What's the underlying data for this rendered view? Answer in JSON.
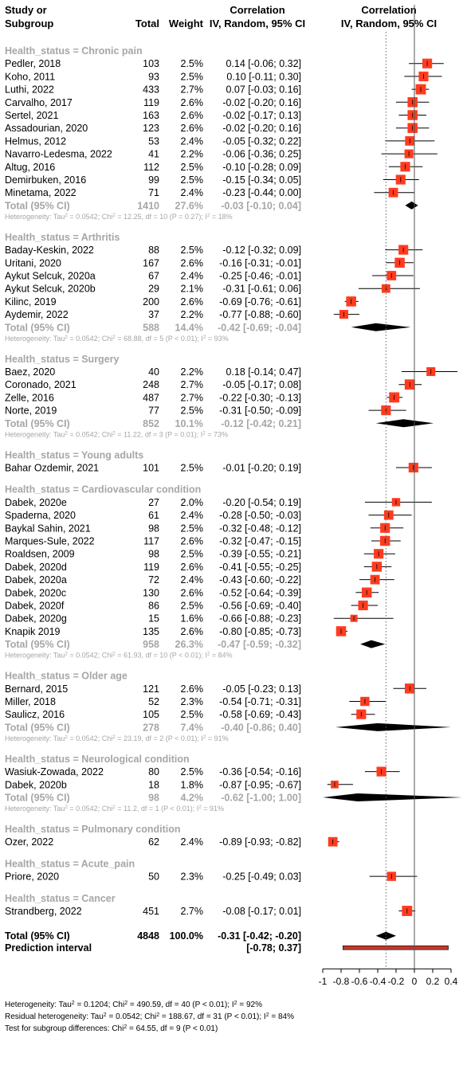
{
  "chart_data": {
    "type": "forest",
    "columns": {
      "study_line1": "Study or",
      "study_line2": "Subgroup",
      "total": "Total",
      "weight": "Weight",
      "effect_line1": "Correlation",
      "effect_line2": "IV, Random, 95% CI",
      "plot_line1": "Correlation",
      "plot_line2": "IV, Random, 95% CI"
    },
    "x_axis": {
      "range": [
        -1,
        0.4
      ],
      "ticks": [
        "-1",
        "-0.8",
        "-0.6",
        "-0.4",
        "-0.2",
        "0",
        "0.2",
        "0.4"
      ],
      "tick_values": [
        -1,
        -0.8,
        -0.6,
        -0.4,
        -0.2,
        0,
        0.2,
        0.4
      ],
      "reference_line": 0,
      "overall_dotted_line": -0.31
    },
    "colors": {
      "study_box": "#ff3b1f",
      "subgroup_text": "#a6a6a6",
      "diamond": "#000000",
      "prediction_bar": "#c0392b"
    },
    "subgroups": [
      {
        "label": "Health_status = Chronic pain",
        "studies": [
          {
            "study": "Pedler, 2018",
            "total": "103",
            "weight": "2.5%",
            "ci_text": "0.14 [-0.06; 0.32]",
            "est": 0.14,
            "lo": -0.06,
            "hi": 0.32
          },
          {
            "study": "Koho, 2011",
            "total": "93",
            "weight": "2.5%",
            "ci_text": "0.10 [-0.11; 0.30]",
            "est": 0.1,
            "lo": -0.11,
            "hi": 0.3
          },
          {
            "study": "Luthi, 2022",
            "total": "433",
            "weight": "2.7%",
            "ci_text": "0.07 [-0.03; 0.16]",
            "est": 0.07,
            "lo": -0.03,
            "hi": 0.16
          },
          {
            "study": "Carvalho, 2017",
            "total": "119",
            "weight": "2.6%",
            "ci_text": "-0.02 [-0.20; 0.16]",
            "est": -0.02,
            "lo": -0.2,
            "hi": 0.16
          },
          {
            "study": "Sertel, 2021",
            "total": "163",
            "weight": "2.6%",
            "ci_text": "-0.02 [-0.17; 0.13]",
            "est": -0.02,
            "lo": -0.17,
            "hi": 0.13
          },
          {
            "study": "Assadourian, 2020",
            "total": "123",
            "weight": "2.6%",
            "ci_text": "-0.02 [-0.20; 0.16]",
            "est": -0.02,
            "lo": -0.2,
            "hi": 0.16
          },
          {
            "study": "Helmus, 2012",
            "total": "53",
            "weight": "2.4%",
            "ci_text": "-0.05 [-0.32; 0.22]",
            "est": -0.05,
            "lo": -0.32,
            "hi": 0.22
          },
          {
            "study": "Navarro-Ledesma, 2022",
            "total": "41",
            "weight": "2.2%",
            "ci_text": "-0.06 [-0.36; 0.25]",
            "est": -0.06,
            "lo": -0.36,
            "hi": 0.25
          },
          {
            "study": "Altug, 2016",
            "total": "112",
            "weight": "2.5%",
            "ci_text": "-0.10 [-0.28; 0.09]",
            "est": -0.1,
            "lo": -0.28,
            "hi": 0.09
          },
          {
            "study": "Demirbuken, 2016",
            "total": "99",
            "weight": "2.5%",
            "ci_text": "-0.15 [-0.34; 0.05]",
            "est": -0.15,
            "lo": -0.34,
            "hi": 0.05
          },
          {
            "study": "Minetama, 2022",
            "total": "71",
            "weight": "2.4%",
            "ci_text": "-0.23 [-0.44; 0.00]",
            "est": -0.23,
            "lo": -0.44,
            "hi": 0.0
          }
        ],
        "total": {
          "label": "Total (95% CI)",
          "n": "1410",
          "weight": "27.6%",
          "ci_text": "-0.03 [-0.10; 0.04]",
          "est": -0.03,
          "lo": -0.1,
          "hi": 0.04
        },
        "heterogeneity": {
          "prefix": "Heterogeneity: Tau",
          "mid": " = 0.0542; Chi",
          "rest": " = 12.25, df = 10 (P = 0.27); I",
          "end": " = 18%"
        }
      },
      {
        "label": "Health_status = Arthritis",
        "studies": [
          {
            "study": "Baday-Keskin, 2022",
            "total": "88",
            "weight": "2.5%",
            "ci_text": "-0.12 [-0.32; 0.09]",
            "est": -0.12,
            "lo": -0.32,
            "hi": 0.09
          },
          {
            "study": "Uritani, 2020",
            "total": "167",
            "weight": "2.6%",
            "ci_text": "-0.16 [-0.31; -0.01]",
            "est": -0.16,
            "lo": -0.31,
            "hi": -0.01
          },
          {
            "study": "Aykut Selcuk, 2020a",
            "total": "67",
            "weight": "2.4%",
            "ci_text": "-0.25 [-0.46; -0.01]",
            "est": -0.25,
            "lo": -0.46,
            "hi": -0.01
          },
          {
            "study": "Aykut Selcuk, 2020b",
            "total": "29",
            "weight": "2.1%",
            "ci_text": "-0.31 [-0.61; 0.06]",
            "est": -0.31,
            "lo": -0.61,
            "hi": 0.06
          },
          {
            "study": "Kilinc, 2019",
            "total": "200",
            "weight": "2.6%",
            "ci_text": "-0.69 [-0.76; -0.61]",
            "est": -0.69,
            "lo": -0.76,
            "hi": -0.61
          },
          {
            "study": "Aydemir, 2022",
            "total": "37",
            "weight": "2.2%",
            "ci_text": "-0.77 [-0.88; -0.60]",
            "est": -0.77,
            "lo": -0.88,
            "hi": -0.6
          }
        ],
        "total": {
          "label": "Total (95% CI)",
          "n": "588",
          "weight": "14.4%",
          "ci_text": "-0.42 [-0.69; -0.04]",
          "est": -0.42,
          "lo": -0.69,
          "hi": -0.04
        },
        "heterogeneity": {
          "prefix": "Heterogeneity: Tau",
          "mid": " = 0.0542; Chi",
          "rest": " = 68.88, df = 5 (P < 0.01); I",
          "end": " = 93%"
        }
      },
      {
        "label": "Health_status = Surgery",
        "studies": [
          {
            "study": "Baez, 2020",
            "total": "40",
            "weight": "2.2%",
            "ci_text": "0.18 [-0.14; 0.47]",
            "est": 0.18,
            "lo": -0.14,
            "hi": 0.47
          },
          {
            "study": "Coronado, 2021",
            "total": "248",
            "weight": "2.7%",
            "ci_text": "-0.05 [-0.17; 0.08]",
            "est": -0.05,
            "lo": -0.17,
            "hi": 0.08
          },
          {
            "study": "Zelle, 2016",
            "total": "487",
            "weight": "2.7%",
            "ci_text": "-0.22 [-0.30; -0.13]",
            "est": -0.22,
            "lo": -0.3,
            "hi": -0.13
          },
          {
            "study": "Norte, 2019",
            "total": "77",
            "weight": "2.5%",
            "ci_text": "-0.31 [-0.50; -0.09]",
            "est": -0.31,
            "lo": -0.5,
            "hi": -0.09
          }
        ],
        "total": {
          "label": "Total (95% CI)",
          "n": "852",
          "weight": "10.1%",
          "ci_text": "-0.12 [-0.42; 0.21]",
          "est": -0.12,
          "lo": -0.42,
          "hi": 0.21
        },
        "heterogeneity": {
          "prefix": "Heterogeneity: Tau",
          "mid": " = 0.0542; Chi",
          "rest": " = 11.22, df = 3 (P = 0.01); I",
          "end": " = 73%"
        }
      },
      {
        "label": "Health_status = Young adults",
        "studies": [
          {
            "study": "Bahar Ozdemir, 2021",
            "total": "101",
            "weight": "2.5%",
            "ci_text": "-0.01 [-0.20; 0.19]",
            "est": -0.01,
            "lo": -0.2,
            "hi": 0.19
          }
        ]
      },
      {
        "label": "Health_status = Cardiovascular condition",
        "studies": [
          {
            "study": "Dabek, 2020e",
            "total": "27",
            "weight": "2.0%",
            "ci_text": "-0.20 [-0.54; 0.19]",
            "est": -0.2,
            "lo": -0.54,
            "hi": 0.19
          },
          {
            "study": "Spaderna, 2020",
            "total": "61",
            "weight": "2.4%",
            "ci_text": "-0.28 [-0.50; -0.03]",
            "est": -0.28,
            "lo": -0.5,
            "hi": -0.03
          },
          {
            "study": "Baykal Sahin, 2021",
            "total": "98",
            "weight": "2.5%",
            "ci_text": "-0.32 [-0.48; -0.12]",
            "est": -0.32,
            "lo": -0.48,
            "hi": -0.12
          },
          {
            "study": "Marques-Sule, 2022",
            "total": "117",
            "weight": "2.6%",
            "ci_text": "-0.32 [-0.47; -0.15]",
            "est": -0.32,
            "lo": -0.47,
            "hi": -0.15
          },
          {
            "study": "Roaldsen, 2009",
            "total": "98",
            "weight": "2.5%",
            "ci_text": "-0.39 [-0.55; -0.21]",
            "est": -0.39,
            "lo": -0.55,
            "hi": -0.21
          },
          {
            "study": "Dabek, 2020d",
            "total": "119",
            "weight": "2.6%",
            "ci_text": "-0.41 [-0.55; -0.25]",
            "est": -0.41,
            "lo": -0.55,
            "hi": -0.25
          },
          {
            "study": "Dabek, 2020a",
            "total": "72",
            "weight": "2.4%",
            "ci_text": "-0.43 [-0.60; -0.22]",
            "est": -0.43,
            "lo": -0.6,
            "hi": -0.22
          },
          {
            "study": "Dabek, 2020c",
            "total": "130",
            "weight": "2.6%",
            "ci_text": "-0.52 [-0.64; -0.39]",
            "est": -0.52,
            "lo": -0.64,
            "hi": -0.39
          },
          {
            "study": "Dabek, 2020f",
            "total": "86",
            "weight": "2.5%",
            "ci_text": "-0.56 [-0.69; -0.40]",
            "est": -0.56,
            "lo": -0.69,
            "hi": -0.4
          },
          {
            "study": "Dabek, 2020g",
            "total": "15",
            "weight": "1.6%",
            "ci_text": "-0.66 [-0.88; -0.23]",
            "est": -0.66,
            "lo": -0.88,
            "hi": -0.23
          },
          {
            "study": "Knapik 2019",
            "total": "135",
            "weight": "2.6%",
            "ci_text": "-0.80 [-0.85; -0.73]",
            "est": -0.8,
            "lo": -0.85,
            "hi": -0.73
          }
        ],
        "total": {
          "label": "Total (95% CI)",
          "n": "958",
          "weight": "26.3%",
          "ci_text": "-0.47 [-0.59; -0.32]",
          "est": -0.47,
          "lo": -0.59,
          "hi": -0.32
        },
        "heterogeneity": {
          "prefix": "Heterogeneity: Tau",
          "mid": " = 0.0542; Chi",
          "rest": " = 61.93, df = 10 (P < 0.01); I",
          "end": " = 84%"
        }
      },
      {
        "label": "Health_status = Older age",
        "studies": [
          {
            "study": "Bernard, 2015",
            "total": "121",
            "weight": "2.6%",
            "ci_text": "-0.05 [-0.23; 0.13]",
            "est": -0.05,
            "lo": -0.23,
            "hi": 0.13
          },
          {
            "study": "Miller, 2018",
            "total": "52",
            "weight": "2.3%",
            "ci_text": "-0.54 [-0.71; -0.31]",
            "est": -0.54,
            "lo": -0.71,
            "hi": -0.31
          },
          {
            "study": "Saulicz, 2016",
            "total": "105",
            "weight": "2.5%",
            "ci_text": "-0.58 [-0.69; -0.43]",
            "est": -0.58,
            "lo": -0.69,
            "hi": -0.43
          }
        ],
        "total": {
          "label": "Total (95% CI)",
          "n": "278",
          "weight": "7.4%",
          "ci_text": "-0.40 [-0.86; 0.40]",
          "est": -0.4,
          "lo": -0.86,
          "hi": 0.4
        },
        "heterogeneity": {
          "prefix": "Heterogeneity: Tau",
          "mid": " = 0.0542; Chi",
          "rest": " = 23.19, df = 2 (P < 0.01); I",
          "end": " = 91%"
        }
      },
      {
        "label": "Health_status = Neurological condition",
        "studies": [
          {
            "study": "Wasiuk-Zowada, 2022",
            "total": "80",
            "weight": "2.5%",
            "ci_text": "-0.36 [-0.54; -0.16]",
            "est": -0.36,
            "lo": -0.54,
            "hi": -0.16
          },
          {
            "study": "Dabek, 2020b",
            "total": "18",
            "weight": "1.8%",
            "ci_text": "-0.87 [-0.95; -0.67]",
            "est": -0.87,
            "lo": -0.95,
            "hi": -0.67
          }
        ],
        "total": {
          "label": "Total (95% CI)",
          "n": "98",
          "weight": "4.2%",
          "ci_text": "-0.62 [-1.00; 1.00]",
          "est": -0.62,
          "lo": -1.0,
          "hi": 1.0
        },
        "heterogeneity": {
          "prefix": "Heterogeneity: Tau",
          "mid": " = 0.0542; Chi",
          "rest": " = 11.2, df = 1 (P < 0.01); I",
          "end": " = 91%"
        }
      },
      {
        "label": "Health_status = Pulmonary condition",
        "studies": [
          {
            "study": "Ozer, 2022",
            "total": "62",
            "weight": "2.4%",
            "ci_text": "-0.89 [-0.93; -0.82]",
            "est": -0.89,
            "lo": -0.93,
            "hi": -0.82
          }
        ]
      },
      {
        "label": "Health_status = Acute_pain",
        "studies": [
          {
            "study": "Priore, 2020",
            "total": "50",
            "weight": "2.3%",
            "ci_text": "-0.25 [-0.49; 0.03]",
            "est": -0.25,
            "lo": -0.49,
            "hi": 0.03
          }
        ]
      },
      {
        "label": "Health_status = Cancer",
        "studies": [
          {
            "study": "Strandberg, 2022",
            "total": "451",
            "weight": "2.7%",
            "ci_text": "-0.08 [-0.17; 0.01]",
            "est": -0.08,
            "lo": -0.17,
            "hi": 0.01
          }
        ]
      }
    ],
    "overall": {
      "label": "Total (95% CI)",
      "n": "4848",
      "weight": "100.0%",
      "ci_text": "-0.31 [-0.42; -0.20]",
      "est": -0.31,
      "lo": -0.42,
      "hi": -0.2
    },
    "prediction_interval": {
      "label": "Prediction interval",
      "ci_text": "[-0.78; 0.37]",
      "lo": -0.78,
      "hi": 0.37
    },
    "footer": [
      {
        "prefix": "Heterogeneity: Tau",
        "mid": " = 0.1204; Chi",
        "rest": " = 490.59, df = 40 (P < 0.01); I",
        "end": " = 92%"
      },
      {
        "prefix": "Residual heterogeneity: Tau",
        "mid": " = 0.0542; Chi",
        "rest": " = 188.67, df = 31 (P < 0.01); I",
        "end": " = 84%"
      },
      {
        "prefix": "Test for subgroup differences: Chi",
        "mid": " = 64.55, df = 9 (P < 0.01)",
        "rest": "",
        "end": ""
      }
    ]
  }
}
